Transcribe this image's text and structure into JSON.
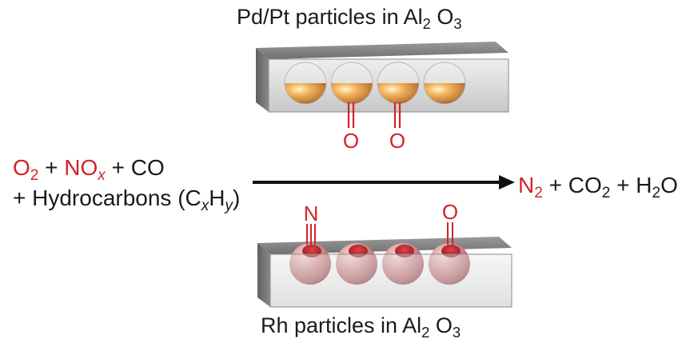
{
  "top_catalyst": {
    "title_prefix": "Pd/Pt particles in Al",
    "title_sub1": "2",
    "title_mid": " O",
    "title_sub2": "3",
    "adsorbate_1": "O",
    "adsorbate_2": "O"
  },
  "bottom_catalyst": {
    "title_prefix": "Rh particles in Al",
    "title_sub1": "2",
    "title_mid": " O",
    "title_sub2": "3",
    "adsorbate_1": "N",
    "adsorbate_2": "O"
  },
  "reactants": {
    "o": "O",
    "o_sub": "2",
    "plus1": " + ",
    "no": "NO",
    "no_sub": "x",
    "plus_co": " + CO",
    "line2_prefix": "+ Hydrocarbons (C",
    "c_sub": "x",
    "h": "H",
    "h_sub": "y",
    "close": ")"
  },
  "products": {
    "n": "N",
    "n_sub": "2",
    "plus1": " + CO",
    "co_sub": "2",
    "plus2": " + H",
    "h_sub": "2",
    "o": "O"
  },
  "colors": {
    "highlight_red": "#d2232a",
    "gold_particle": "#e28a1f",
    "rh_particle": "#c24c4f",
    "support_gray": "#9a9a9a"
  }
}
